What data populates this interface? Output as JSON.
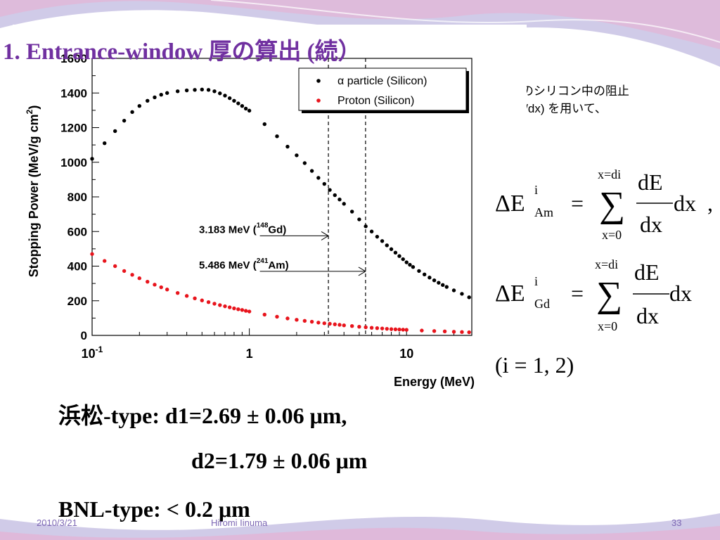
{
  "slide": {
    "title": "1. Entrance-window 厚の算出 (続）",
    "note_line1": "α粒子のシリコン中の阻止",
    "note_line2": "能 (dE/dx) を用いて、",
    "equations": {
      "eq1_lhs": "ΔE",
      "eq1_sup": "i",
      "eq1_sub": "Am",
      "eq1_eq": "=",
      "eq1_sum_top": "x=di",
      "eq1_sum_bottom": "x=0",
      "eq1_sigma": "∑",
      "eq1_num": "dE",
      "eq1_den": "dx",
      "eq1_tail": "dx",
      "eq1_comma": ",",
      "eq2_lhs": "ΔE",
      "eq2_sup": "i",
      "eq2_sub": "Gd",
      "eq2_eq": "=",
      "eq2_sum_top": "x=di",
      "eq2_sum_bottom": "x=0",
      "eq2_sigma": "∑",
      "eq2_num": "dE",
      "eq2_den": "dx",
      "eq2_tail": "dx",
      "index_note": "(i = 1, 2)"
    },
    "results": {
      "hamamatsu_line": "浜松-type: d1=2.69 ± 0.06 μm,",
      "d2_line": "d2=1.79 ± 0.06 μm",
      "bnl_line": "BNL-type: < 0.2 μm"
    },
    "footer": {
      "date": "2010/3/21",
      "author": "Hiromi Iinuma",
      "page": "33"
    }
  },
  "colors": {
    "title": "#7030a0",
    "alpha_series": "#000000",
    "proton_series": "#e8141c",
    "wave_purple": "#a9a0d6",
    "wave_pink": "#e4b3d6",
    "footer_text": "#7d67b4"
  },
  "chart_data": {
    "type": "scatter",
    "title": "",
    "xlabel": "Energy (MeV)",
    "ylabel": "Stopping Power (MeV/g cm2)",
    "ylabel_main": "Stopping Power (MeV/g cm",
    "ylabel_sup": "2",
    "ylabel_close": ")",
    "x_scale": "log",
    "xlim": [
      0.1,
      26
    ],
    "ylim": [
      0,
      1600
    ],
    "x_ticks": [
      {
        "value": 0.1,
        "base": "10",
        "exp": "-1"
      },
      {
        "value": 1,
        "base": "1",
        "exp": ""
      },
      {
        "value": 10,
        "base": "10",
        "exp": ""
      }
    ],
    "y_ticks": [
      0,
      200,
      400,
      600,
      800,
      1000,
      1200,
      1400,
      1600
    ],
    "grid": false,
    "legend_position": "top-right",
    "series": [
      {
        "name": "α particle (Silicon)",
        "color": "#000000",
        "points": [
          [
            0.1,
            1020
          ],
          [
            0.12,
            1110
          ],
          [
            0.14,
            1180
          ],
          [
            0.16,
            1240
          ],
          [
            0.18,
            1290
          ],
          [
            0.2,
            1325
          ],
          [
            0.225,
            1355
          ],
          [
            0.25,
            1375
          ],
          [
            0.275,
            1390
          ],
          [
            0.3,
            1400
          ],
          [
            0.35,
            1410
          ],
          [
            0.4,
            1415
          ],
          [
            0.45,
            1418
          ],
          [
            0.5,
            1420
          ],
          [
            0.55,
            1418
          ],
          [
            0.6,
            1410
          ],
          [
            0.65,
            1398
          ],
          [
            0.7,
            1385
          ],
          [
            0.75,
            1370
          ],
          [
            0.8,
            1355
          ],
          [
            0.85,
            1340
          ],
          [
            0.9,
            1325
          ],
          [
            0.95,
            1310
          ],
          [
            1.0,
            1298
          ],
          [
            1.25,
            1220
          ],
          [
            1.5,
            1150
          ],
          [
            1.75,
            1090
          ],
          [
            2.0,
            1040
          ],
          [
            2.25,
            995
          ],
          [
            2.5,
            950
          ],
          [
            2.75,
            910
          ],
          [
            3.0,
            875
          ],
          [
            3.25,
            840
          ],
          [
            3.5,
            810
          ],
          [
            3.75,
            785
          ],
          [
            4.0,
            760
          ],
          [
            4.5,
            715
          ],
          [
            5.0,
            670
          ],
          [
            5.5,
            630
          ],
          [
            6.0,
            600
          ],
          [
            6.5,
            570
          ],
          [
            7.0,
            545
          ],
          [
            7.5,
            520
          ],
          [
            8.0,
            498
          ],
          [
            8.5,
            478
          ],
          [
            9.0,
            458
          ],
          [
            9.5,
            440
          ],
          [
            10.0,
            422
          ],
          [
            10.5,
            408
          ],
          [
            11.0,
            395
          ],
          [
            12.0,
            372
          ],
          [
            13.0,
            352
          ],
          [
            14.0,
            334
          ],
          [
            15.0,
            318
          ],
          [
            16.0,
            304
          ],
          [
            17.0,
            291
          ],
          [
            18.0,
            280
          ],
          [
            20.0,
            260
          ],
          [
            22.5,
            240
          ],
          [
            25.0,
            220
          ]
        ]
      },
      {
        "name": "Proton (Silicon)",
        "color": "#e8141c",
        "points": [
          [
            0.1,
            470
          ],
          [
            0.12,
            430
          ],
          [
            0.14,
            400
          ],
          [
            0.16,
            372
          ],
          [
            0.18,
            350
          ],
          [
            0.2,
            330
          ],
          [
            0.225,
            310
          ],
          [
            0.25,
            293
          ],
          [
            0.275,
            278
          ],
          [
            0.3,
            265
          ],
          [
            0.35,
            245
          ],
          [
            0.4,
            228
          ],
          [
            0.45,
            214
          ],
          [
            0.5,
            202
          ],
          [
            0.55,
            192
          ],
          [
            0.6,
            183
          ],
          [
            0.65,
            175
          ],
          [
            0.7,
            168
          ],
          [
            0.75,
            162
          ],
          [
            0.8,
            156
          ],
          [
            0.85,
            151
          ],
          [
            0.9,
            147
          ],
          [
            0.95,
            142
          ],
          [
            1.0,
            138
          ],
          [
            1.25,
            120
          ],
          [
            1.5,
            108
          ],
          [
            1.75,
            98
          ],
          [
            2.0,
            90
          ],
          [
            2.25,
            84
          ],
          [
            2.5,
            79
          ],
          [
            2.75,
            74
          ],
          [
            3.0,
            70
          ],
          [
            3.25,
            67
          ],
          [
            3.5,
            64
          ],
          [
            3.75,
            61
          ],
          [
            4.0,
            58
          ],
          [
            4.5,
            54
          ],
          [
            5.0,
            50
          ],
          [
            5.5,
            47
          ],
          [
            6.0,
            44
          ],
          [
            6.5,
            42
          ],
          [
            7.0,
            40
          ],
          [
            7.5,
            38
          ],
          [
            8.0,
            36
          ],
          [
            8.5,
            35
          ],
          [
            9.0,
            34
          ],
          [
            9.5,
            33
          ],
          [
            10.0,
            32
          ],
          [
            12.5,
            28
          ],
          [
            15.0,
            25
          ],
          [
            17.5,
            23
          ],
          [
            20.0,
            21
          ],
          [
            22.5,
            19.5
          ],
          [
            25.0,
            18
          ]
        ]
      }
    ],
    "reference_lines": [
      {
        "x": 3.183,
        "style": "dashed"
      },
      {
        "x": 5.486,
        "style": "dashed"
      }
    ],
    "annotations": [
      {
        "text_main": "3.183 MeV (",
        "sup": "148",
        "text_end": "Gd)",
        "x": 3.183,
        "y": 575
      },
      {
        "text_main": "5.486 MeV (",
        "sup": "241",
        "text_end": "Am)",
        "x": 5.486,
        "y": 370
      }
    ]
  }
}
